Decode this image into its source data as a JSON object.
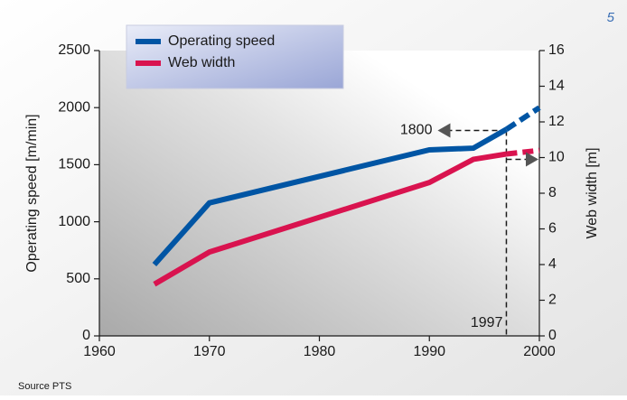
{
  "chart_data": {
    "type": "line",
    "x": [
      1965,
      1970,
      1990,
      1994,
      1997,
      2000
    ],
    "xlim": [
      1960,
      2000
    ],
    "xticks": [
      1960,
      1970,
      1980,
      1990,
      2000
    ],
    "ylim": [
      0,
      2500
    ],
    "yticks": [
      0,
      500,
      1000,
      1500,
      2000,
      2500
    ],
    "y2lim": [
      0,
      16
    ],
    "y2ticks": [
      0,
      2,
      4,
      6,
      8,
      10,
      12,
      14,
      16
    ],
    "y_label": "Operating speed [m/min]",
    "y2_label": "Web width [m]",
    "projection_from": 1997,
    "series": [
      {
        "name": "Operating speed",
        "color": "#0055a4",
        "values": [
          625,
          1165,
          1630,
          1645,
          1810,
          2000
        ]
      },
      {
        "name": "Web width",
        "color": "#d9134f",
        "axis": "y2",
        "values": [
          2.9,
          4.7,
          8.6,
          9.9,
          10.2,
          10.4
        ]
      }
    ],
    "annotations": {
      "speed": 1800,
      "year": 1997
    },
    "page_number": "5",
    "source": "Source PTS"
  }
}
